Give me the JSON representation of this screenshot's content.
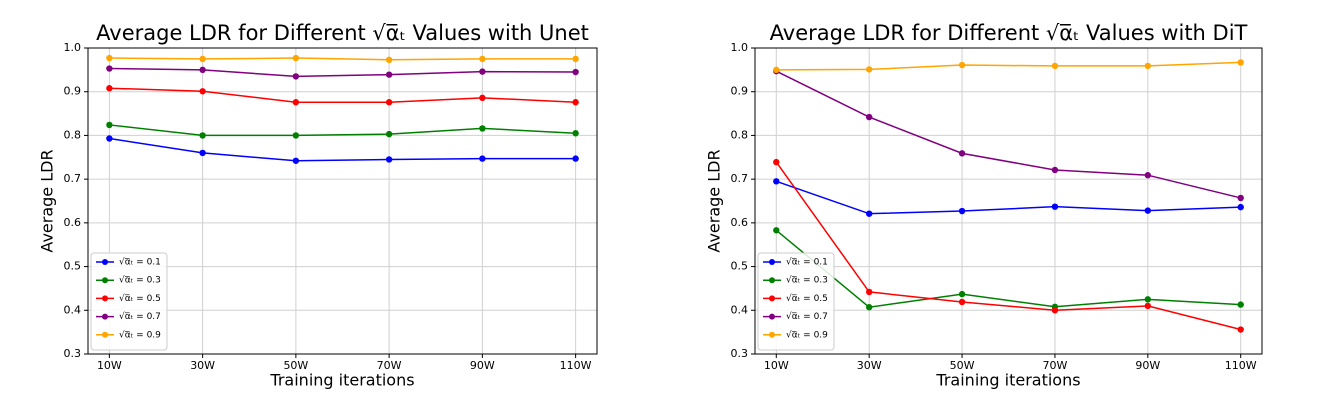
{
  "chart_data": [
    {
      "type": "line",
      "title": "Average LDR for Different √α̅ₜ Values with Unet",
      "x_label": "Training iterations",
      "y_label": "Average LDR",
      "categories": [
        "10W",
        "30W",
        "50W",
        "70W",
        "90W",
        "110W"
      ],
      "ylim": [
        0.3,
        1.0
      ],
      "yticks": [
        0.3,
        0.4,
        0.5,
        0.6,
        0.7,
        0.8,
        0.9,
        {
          "value": 1.0,
          "label": "1.0"
        }
      ],
      "grid": true,
      "legend": "lower left",
      "series": [
        {
          "name": "√α̅ₜ = 0.1",
          "color": "#0000ff",
          "values": [
            0.793,
            0.76,
            0.742,
            0.745,
            0.747,
            0.747
          ]
        },
        {
          "name": "√α̅ₜ = 0.3",
          "color": "#008000",
          "values": [
            0.824,
            0.8,
            0.8,
            0.803,
            0.816,
            0.805
          ]
        },
        {
          "name": "√α̅ₜ = 0.5",
          "color": "#ff0000",
          "values": [
            0.908,
            0.901,
            0.876,
            0.876,
            0.886,
            0.876
          ]
        },
        {
          "name": "√α̅ₜ = 0.7",
          "color": "#800080",
          "values": [
            0.953,
            0.95,
            0.935,
            0.939,
            0.946,
            0.945
          ]
        },
        {
          "name": "√α̅ₜ = 0.9",
          "color": "#ffa500",
          "values": [
            0.977,
            0.975,
            0.977,
            0.973,
            0.975,
            0.975
          ]
        }
      ]
    },
    {
      "type": "line",
      "title": "Average LDR for Different √α̅ₜ Values with DiT",
      "x_label": "Training iterations",
      "y_label": "Average LDR",
      "categories": [
        "10W",
        "30W",
        "50W",
        "70W",
        "90W",
        "110W"
      ],
      "ylim": [
        0.3,
        1.0
      ],
      "yticks": [
        0.3,
        0.4,
        0.5,
        0.6,
        0.7,
        0.8,
        0.9,
        {
          "value": 1.0,
          "label": "1.0"
        }
      ],
      "grid": true,
      "legend": "lower left",
      "series": [
        {
          "name": "√α̅ₜ = 0.1",
          "color": "#0000ff",
          "values": [
            0.695,
            0.621,
            0.627,
            0.637,
            0.628,
            0.636
          ]
        },
        {
          "name": "√α̅ₜ = 0.3",
          "color": "#008000",
          "values": [
            0.583,
            0.407,
            0.437,
            0.408,
            0.425,
            0.413
          ]
        },
        {
          "name": "√α̅ₜ = 0.5",
          "color": "#ff0000",
          "values": [
            0.739,
            0.442,
            0.419,
            0.4,
            0.41,
            0.356
          ]
        },
        {
          "name": "√α̅ₜ = 0.7",
          "color": "#800080",
          "values": [
            0.947,
            0.842,
            0.759,
            0.721,
            0.709,
            0.657
          ]
        },
        {
          "name": "√α̅ₜ = 0.9",
          "color": "#ffa500",
          "values": [
            0.95,
            0.951,
            0.961,
            0.959,
            0.959,
            0.967
          ]
        }
      ]
    }
  ]
}
